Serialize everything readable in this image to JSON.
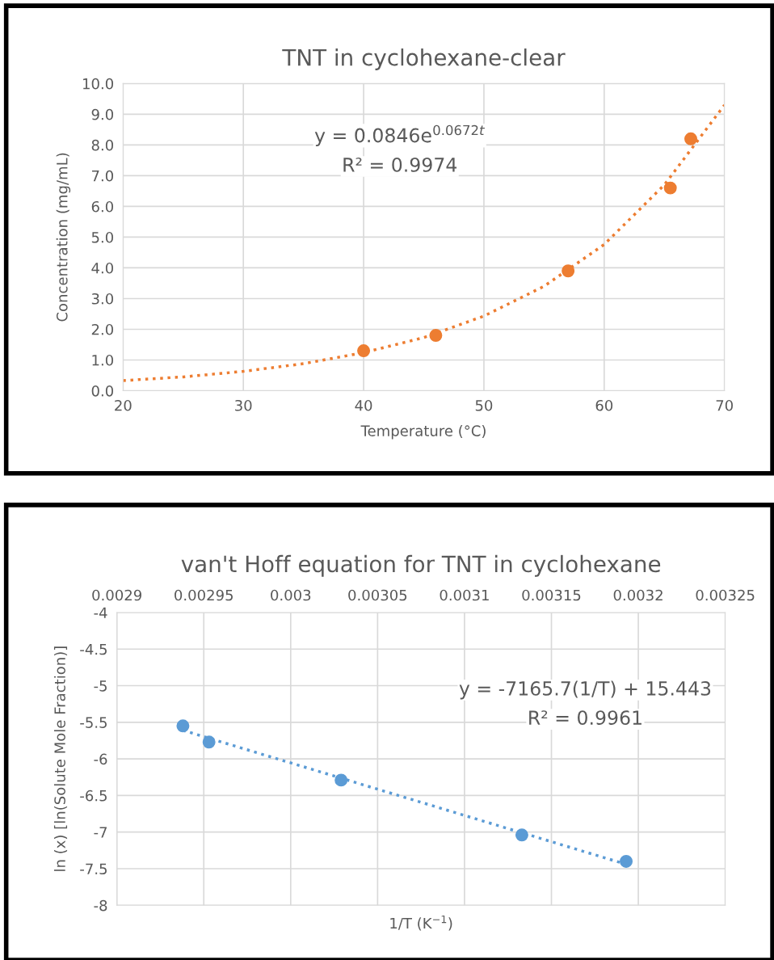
{
  "chart_data": [
    {
      "type": "scatter",
      "title": "TNT in cyclohexane-clear",
      "xlabel": "Temperature (°C)",
      "ylabel": "Concentration (mg/mL)",
      "xlim": [
        20,
        70
      ],
      "xticks": [
        20,
        30,
        40,
        50,
        60,
        70
      ],
      "ylim": [
        0,
        10
      ],
      "yticks": [
        {
          "value": 0,
          "label": "0.0"
        },
        {
          "value": 1,
          "label": "1.0"
        },
        {
          "value": 2,
          "label": "2.0"
        },
        {
          "value": 3,
          "label": "3.0"
        },
        {
          "value": 4,
          "label": "4.0"
        },
        {
          "value": 5,
          "label": "5.0"
        },
        {
          "value": 6,
          "label": "6.0"
        },
        {
          "value": 7,
          "label": "7.0"
        },
        {
          "value": 8,
          "label": "8.0"
        },
        {
          "value": 9,
          "label": "9.0"
        },
        {
          "value": 10,
          "label": "10.0"
        }
      ],
      "grid": true,
      "marker": "circle",
      "series": [
        {
          "type": "line",
          "color": "#ed7d31",
          "line_style": "dotted",
          "marker": "none",
          "x": [
            20,
            25,
            30,
            35,
            40,
            45,
            50,
            55,
            60,
            65,
            70
          ],
          "values": [
            0.33,
            0.45,
            0.63,
            0.88,
            1.24,
            1.73,
            2.43,
            3.4,
            4.76,
            6.7,
            9.3
          ]
        },
        {
          "color": "#ed7d31",
          "x": [
            40,
            46,
            57,
            65.5,
            67.2
          ],
          "values": [
            1.3,
            1.8,
            3.9,
            6.6,
            8.2
          ]
        }
      ],
      "annotations": [
        "y = 0.0846e$^{0.0672t}$",
        "R² = 0.9974"
      ]
    },
    {
      "type": "scatter",
      "title": "van't Hoff equation for TNT in cyclohexane",
      "xlabel": "1/T (K$^{−1}$)",
      "ylabel": "ln (x) [ln(Solute Mole Fraction)]",
      "xlim": [
        0.0029,
        0.00325
      ],
      "xticks": [
        0.0029,
        0.00295,
        0.003,
        0.00305,
        0.0031,
        0.00315,
        0.0032,
        0.00325
      ],
      "ylim": [
        -8,
        -4
      ],
      "yticks": [
        -8,
        -7.5,
        -7,
        -6.5,
        -6,
        -5.5,
        -5,
        -4.5,
        -4
      ],
      "grid": true,
      "marker": "circle",
      "series": [
        {
          "type": "line",
          "color": "#5b9bd5",
          "line_style": "dotted",
          "marker": "none",
          "x": [
            0.002938,
            0.003193
          ],
          "values": [
            -5.61,
            -7.44
          ]
        },
        {
          "color": "#5b9bd5",
          "x": [
            0.002938,
            0.002953,
            0.003029,
            0.003133,
            0.003193
          ],
          "values": [
            -5.55,
            -5.77,
            -6.29,
            -7.04,
            -7.4
          ]
        }
      ],
      "annotations": [
        "y = -7165.7(1/T) + 15.443",
        "R² = 0.9961"
      ]
    }
  ]
}
